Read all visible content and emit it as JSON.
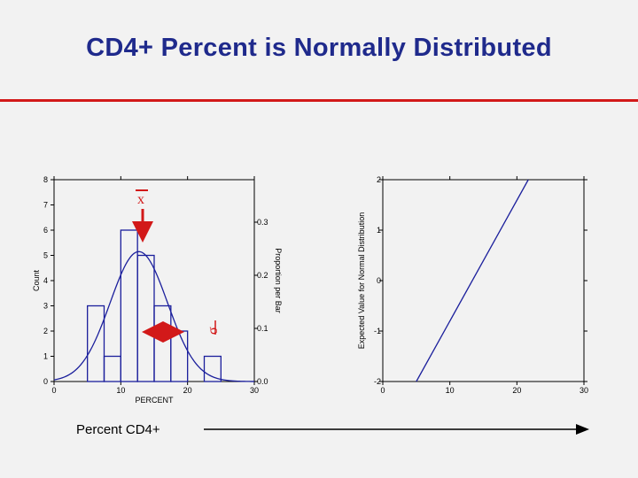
{
  "title": "CD4+ Percent is Normally Distributed",
  "caption": "Percent CD4+",
  "annotations": {
    "mean_symbol": "x",
    "sd_symbol": "σ"
  },
  "colors": {
    "title": "#1f2a8c",
    "rule": "#d21919",
    "series": "#1b1f9c",
    "annotation": "#d21919"
  },
  "chart_data": [
    {
      "type": "bar",
      "xlabel": "PERCENT",
      "ylabel": "Count",
      "y2label": "Proportion per Bar",
      "xlim": [
        0,
        30
      ],
      "ylim": [
        0,
        8
      ],
      "y2lim": [
        0,
        0.38
      ],
      "x_ticks": [
        "0",
        "10",
        "20",
        "30"
      ],
      "y_ticks": [
        "0",
        "1",
        "2",
        "3",
        "4",
        "5",
        "6",
        "7",
        "8"
      ],
      "y2_ticks": [
        "0.0",
        "0.1",
        "0.2",
        "0.3"
      ],
      "bins": [
        {
          "x0": 5,
          "x1": 7.5,
          "count": 3
        },
        {
          "x0": 7.5,
          "x1": 10,
          "count": 1
        },
        {
          "x0": 10,
          "x1": 12.5,
          "count": 6
        },
        {
          "x0": 12.5,
          "x1": 15,
          "count": 5
        },
        {
          "x0": 15,
          "x1": 17.5,
          "count": 3
        },
        {
          "x0": 17.5,
          "x1": 20,
          "count": 2
        },
        {
          "x0": 22.5,
          "x1": 25,
          "count": 1
        }
      ],
      "normal_curve": {
        "mean": 12.7,
        "sd": 4.3,
        "peak_count": 5.15
      }
    },
    {
      "type": "line",
      "ylabel": "Expected Value for Normal Distribution",
      "xlim": [
        0,
        30
      ],
      "ylim": [
        -2,
        2
      ],
      "x_ticks": [
        "0",
        "10",
        "20",
        "30"
      ],
      "y_ticks": [
        "-2",
        "-1",
        "0",
        "1",
        "2"
      ],
      "x": [
        5.0,
        21.7
      ],
      "y": [
        -2,
        2
      ]
    }
  ]
}
